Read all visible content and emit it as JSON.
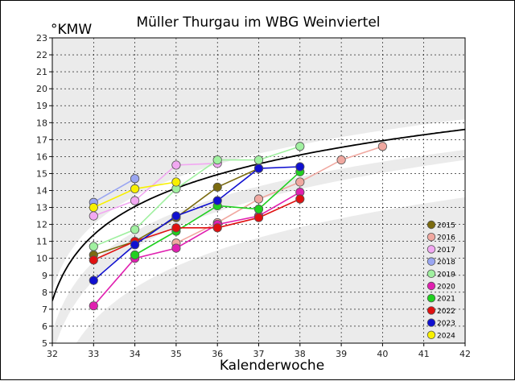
{
  "chart_data": {
    "type": "line",
    "title": "Müller Thurgau im WBG Weinviertel",
    "xlabel": "Kalenderwoche",
    "ylabel": "°KMW",
    "xlim": [
      32,
      42
    ],
    "ylim": [
      5,
      23
    ],
    "x_ticks": [
      32,
      33,
      34,
      35,
      36,
      37,
      38,
      39,
      40,
      41,
      42
    ],
    "y_ticks": [
      5,
      6,
      7,
      8,
      9,
      10,
      11,
      12,
      13,
      14,
      15,
      16,
      17,
      18,
      19,
      20,
      21,
      22,
      23
    ],
    "grid": "dashed",
    "legend_position": "bottom-right",
    "series": [
      {
        "name": "2015",
        "color": "#7b6b10",
        "points": [
          [
            33,
            10.2
          ],
          [
            34,
            11.0
          ],
          [
            35,
            12.4
          ],
          [
            36,
            14.2
          ],
          [
            37,
            15.3
          ]
        ]
      },
      {
        "name": "2016",
        "color": "#f0a8a0",
        "points": [
          [
            35,
            10.9
          ],
          [
            36,
            12.1
          ],
          [
            37,
            13.5
          ],
          [
            38,
            14.5
          ],
          [
            39,
            15.8
          ],
          [
            40,
            16.6
          ]
        ]
      },
      {
        "name": "2017",
        "color": "#f2a8f2",
        "points": [
          [
            33,
            12.5
          ],
          [
            34,
            13.4
          ],
          [
            35,
            15.5
          ],
          [
            36,
            15.6
          ]
        ]
      },
      {
        "name": "2018",
        "color": "#9aa6f2",
        "points": [
          [
            33,
            13.3
          ],
          [
            34,
            14.7
          ]
        ]
      },
      {
        "name": "2019",
        "color": "#a0f0a0",
        "points": [
          [
            33,
            10.7
          ],
          [
            34,
            11.7
          ],
          [
            35,
            14.1
          ],
          [
            36,
            15.8
          ],
          [
            37,
            15.8
          ],
          [
            38,
            16.6
          ]
        ]
      },
      {
        "name": "2020",
        "color": "#e020b0",
        "points": [
          [
            33,
            7.2
          ],
          [
            34,
            10.0
          ],
          [
            35,
            10.6
          ],
          [
            36,
            12.0
          ],
          [
            37,
            12.5
          ],
          [
            38,
            13.9
          ]
        ]
      },
      {
        "name": "2021",
        "color": "#20d020",
        "points": [
          [
            34,
            10.2
          ],
          [
            35,
            11.6
          ],
          [
            36,
            13.1
          ],
          [
            37,
            12.9
          ],
          [
            38,
            15.1
          ]
        ]
      },
      {
        "name": "2022",
        "color": "#e01010",
        "points": [
          [
            33,
            9.9
          ],
          [
            34,
            11.0
          ],
          [
            35,
            11.8
          ],
          [
            36,
            11.8
          ],
          [
            37,
            12.4
          ],
          [
            38,
            13.5
          ]
        ]
      },
      {
        "name": "2023",
        "color": "#1010d0",
        "points": [
          [
            33,
            8.7
          ],
          [
            34,
            10.8
          ],
          [
            35,
            12.5
          ],
          [
            36,
            13.4
          ],
          [
            37,
            15.3
          ],
          [
            38,
            15.4
          ]
        ]
      },
      {
        "name": "2024",
        "color": "#f8f000",
        "points": [
          [
            33,
            13.0
          ],
          [
            34,
            14.1
          ],
          [
            35,
            14.5
          ]
        ]
      }
    ]
  }
}
